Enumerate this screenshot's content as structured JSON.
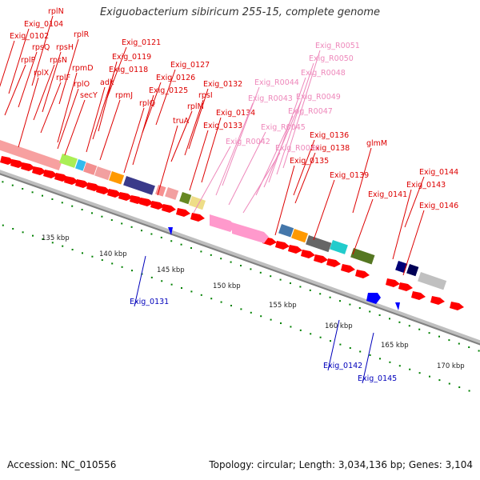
{
  "title": "Exiguobacterium sibiricum 255-15, complete genome",
  "footer": {
    "accession": "Accession: NC_010556",
    "summary": "Topology: circular; Length: 3,034,136 bp; Genes: 3,104"
  },
  "colors": {
    "forward_cds": "#ff0000",
    "trna": "#ff99cc",
    "reverse_cds": "#0000ff",
    "backbone": "#808080",
    "tick": "#008000"
  },
  "kbp_ticks": [
    "135 kbp",
    "140 kbp",
    "145 kbp",
    "150 kbp",
    "155 kbp",
    "160 kbp",
    "165 kbp",
    "170 kbp"
  ],
  "labels_red": [
    "rplN",
    "Exig_0104",
    "Exig_0102",
    "rpsQ",
    "rplP",
    "rplX",
    "rplR",
    "rpsH",
    "rpsN",
    "rplF",
    "rpmD",
    "adk",
    "rplO",
    "secY",
    "Exig_0121",
    "Exig_0119",
    "Exig_0118",
    "rpmJ",
    "Exig_0127",
    "Exig_0126",
    "Exig_0125",
    "rplQ",
    "Exig_0132",
    "rpsI",
    "rplM",
    "truA",
    "Exig_0134",
    "Exig_0133",
    "Exig_0136",
    "Exig_0138",
    "Exig_0135",
    "glmM",
    "Exig_0139",
    "Exig_0141",
    "Exig_0144",
    "Exig_0143",
    "Exig_0146"
  ],
  "labels_pink": [
    "Exig_R0051",
    "Exig_R0050",
    "Exig_R0048",
    "Exig_R0044",
    "Exig_R0043",
    "Exig_R0049",
    "Exig_R0047",
    "Exig_R0045",
    "Exig_R0042",
    "Exig_R0046"
  ],
  "labels_blue": [
    "Exig_0131",
    "Exig_0142",
    "Exig_0145"
  ]
}
